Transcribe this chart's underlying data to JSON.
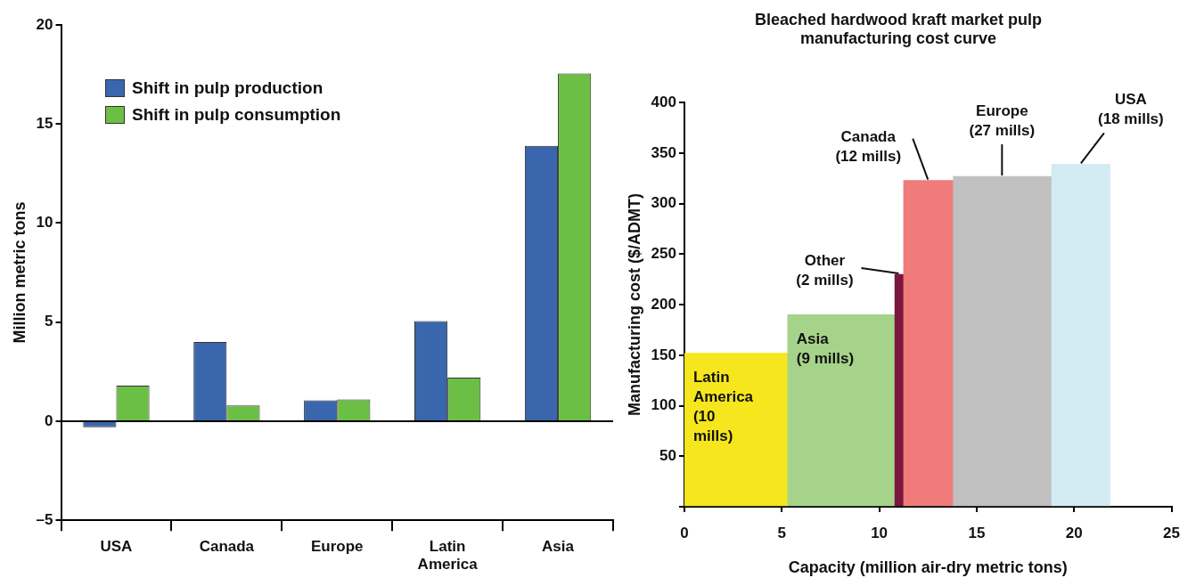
{
  "chart_data": [
    {
      "type": "bar",
      "ylabel": "Million metric tons",
      "categories": [
        "USA",
        "Canada",
        "Europe",
        "Latin\nAmerica",
        "Asia"
      ],
      "series": [
        {
          "name": "Shift in pulp production",
          "color": "#3a66ad",
          "values": [
            -0.3,
            4.0,
            1.05,
            5.05,
            13.9
          ]
        },
        {
          "name": "Shift in pulp consumption",
          "color": "#6cbf45",
          "values": [
            1.8,
            0.8,
            1.1,
            2.2,
            17.55
          ]
        }
      ],
      "ylim": [
        -5,
        20
      ],
      "yticks": [
        {
          "value": -5,
          "label": "–5"
        },
        0,
        5,
        10,
        15,
        20
      ],
      "grid": false,
      "legend": "top left",
      "ref_lines": [
        {
          "axis": "y",
          "value": 0,
          "color": "#000000"
        }
      ]
    },
    {
      "type": "histogram",
      "title": "Bleached hardwood kraft market pulp\nmanufacturing cost curve",
      "xlabel": "Capacity (million air-dry metric tons)",
      "ylabel": "Manufacturing cost ($/ADMT)",
      "bins": [
        0,
        5.3,
        10.8,
        11.25,
        13.8,
        18.85,
        21.85
      ],
      "values": [
        152,
        190,
        230,
        323,
        327,
        339
      ],
      "colors": [
        "#f5e61e",
        "#a6d38a",
        "#7a1640",
        "#f07b7b",
        "#c0c0c0",
        "#d3ebf3"
      ],
      "xlim": [
        0,
        25
      ],
      "xticks": [
        0,
        5,
        10,
        15,
        20,
        25
      ],
      "ylim": [
        0,
        400
      ],
      "yticks": [
        {
          "value": 0,
          "label": null
        },
        50,
        100,
        150,
        200,
        250,
        300,
        350,
        400
      ],
      "grid": false,
      "annotations": [
        "Latin\nAmerica\n(10\nmills)",
        "Asia\n(9 mills)",
        {
          "text": "Other\n(2 mills)",
          "x": 11.0,
          "y": 230
        },
        {
          "text": "Canada\n(12 mills)",
          "x": 12.5,
          "y": 323
        },
        {
          "text": "Europe\n(27 mills)",
          "x": 16.3,
          "y": 327
        },
        {
          "text": "USA\n(18 mills)",
          "x": 20.35,
          "y": 339
        }
      ]
    }
  ]
}
